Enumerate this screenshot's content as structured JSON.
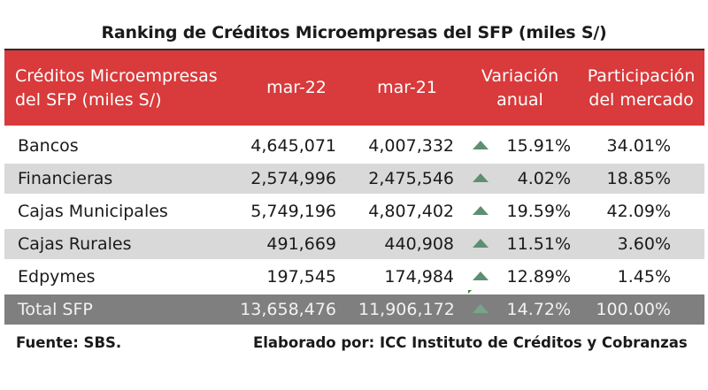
{
  "title": "Ranking de Créditos Microempresas del SFP (miles S/)",
  "header": {
    "col1_line1": "Créditos Microempresas",
    "col1_line2": "del SFP (miles S/)",
    "col2": "mar-22",
    "col3": "mar-21",
    "col4_line1": "Variación",
    "col4_line2": "anual",
    "col5_line1": "Participación",
    "col5_line2": "del mercado"
  },
  "rows": [
    {
      "name": "Bancos",
      "mar22": "4,645,071",
      "mar21": "4,007,332",
      "variation": "15.91%",
      "share": "34.01%"
    },
    {
      "name": "Financieras",
      "mar22": "2,574,996",
      "mar21": "2,475,546",
      "variation": "4.02%",
      "share": "18.85%"
    },
    {
      "name": "Cajas Municipales",
      "mar22": "5,749,196",
      "mar21": "4,807,402",
      "variation": "19.59%",
      "share": "42.09%"
    },
    {
      "name": "Cajas Rurales",
      "mar22": "491,669",
      "mar21": "440,908",
      "variation": "11.51%",
      "share": "3.60%"
    },
    {
      "name": "Edpymes",
      "mar22": "197,545",
      "mar21": "174,984",
      "variation": "12.89%",
      "share": "1.45%"
    }
  ],
  "total": {
    "name": "Total SFP",
    "mar22": "13,658,476",
    "mar21": "11,906,172",
    "variation": "14.72%",
    "share": "100.00%"
  },
  "footer": {
    "source": "Fuente: SBS.",
    "author": "Elaborado por: ICC Instituto de Créditos y Cobranzas"
  },
  "colors": {
    "header_bg": "#d93a3b",
    "shade_row": "#d9d9d9",
    "total_row": "#7f7f7f",
    "up_arrow": "#5e8f72"
  },
  "icons": {
    "variation_indicator": "up-triangle-icon"
  }
}
